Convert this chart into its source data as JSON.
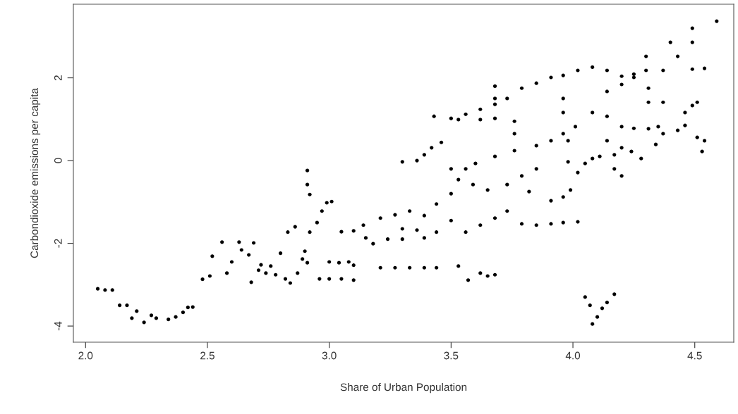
{
  "chart_data": {
    "type": "scatter",
    "xlabel": "Share of Urban Population",
    "ylabel": "Carbondioxide emissions per capita",
    "xlim": [
      1.95,
      4.66
    ],
    "ylim": [
      -4.39,
      3.78
    ],
    "xticks": [
      {
        "value": 2.0,
        "label": "2.0"
      },
      2.5,
      {
        "value": 3.0,
        "label": "3.0"
      },
      3.5,
      {
        "value": 4.0,
        "label": "4.0"
      },
      4.5
    ],
    "yticks": [
      -4,
      -2,
      0,
      2
    ],
    "marker": "circle",
    "grid": false,
    "series": [
      {
        "color": "#000000",
        "x": [
          2.05,
          2.08,
          2.11,
          2.14,
          2.17,
          2.19,
          2.21,
          2.24,
          2.27,
          2.29,
          2.34,
          2.37,
          2.4,
          2.42,
          2.44,
          2.48,
          2.51,
          2.52,
          2.56,
          2.58,
          2.6,
          2.63,
          2.64,
          2.67,
          2.68,
          2.69,
          2.71,
          2.72,
          2.74,
          2.76,
          2.78,
          2.8,
          2.82,
          2.84,
          2.87,
          2.89,
          2.9,
          2.91,
          2.91,
          2.92,
          2.92,
          2.95,
          2.97,
          2.99,
          3.01,
          2.91,
          2.96,
          3.0,
          3.05,
          3.1,
          2.86,
          2.83,
          3.0,
          3.04,
          3.08,
          3.1,
          3.05,
          3.1,
          3.14,
          3.15,
          3.21,
          3.27,
          3.3,
          3.33,
          3.36,
          3.39,
          3.44,
          3.5,
          3.21,
          3.27,
          3.33,
          3.39,
          3.44,
          3.53,
          3.57,
          3.62,
          3.65,
          3.68,
          3.18,
          3.24,
          3.3,
          3.39,
          3.44,
          3.5,
          3.3,
          3.36,
          3.39,
          3.42,
          3.46,
          3.43,
          3.5,
          3.56,
          3.62,
          3.68,
          3.73,
          3.79,
          3.85,
          3.91,
          3.96,
          3.68,
          3.68,
          3.53,
          3.62,
          3.68,
          3.76,
          3.76,
          3.53,
          3.56,
          3.6,
          3.68,
          3.76,
          3.85,
          3.91,
          3.96,
          4.01,
          3.5,
          3.59,
          3.65,
          3.73,
          3.82,
          3.91,
          3.96,
          3.99,
          3.62,
          3.68,
          3.73,
          3.79,
          3.85,
          3.91,
          3.96,
          4.02,
          3.56,
          3.79,
          3.85,
          3.96,
          3.96,
          3.98,
          3.98,
          4.05,
          4.07,
          4.08,
          4.1,
          4.12,
          4.14,
          4.17,
          4.02,
          4.05,
          4.08,
          4.11,
          4.17,
          4.08,
          4.14,
          4.2,
          4.25,
          4.31,
          4.37,
          4.43,
          4.46,
          4.14,
          4.2,
          4.25,
          4.31,
          4.37,
          4.4,
          4.43,
          4.49,
          4.54,
          4.49,
          4.49,
          4.59,
          4.02,
          4.08,
          4.14,
          4.2,
          4.25,
          4.31,
          4.37,
          4.49,
          4.51,
          4.46,
          4.51,
          4.54,
          4.53,
          4.24,
          4.28,
          4.34,
          4.35,
          4.14,
          4.2,
          4.17,
          4.2,
          4.3,
          4.3
        ],
        "values": [
          -3.1,
          -3.13,
          -3.13,
          -3.5,
          -3.5,
          -3.81,
          -3.64,
          -3.91,
          -3.74,
          -3.81,
          -3.84,
          -3.78,
          -3.67,
          -3.55,
          -3.54,
          -2.87,
          -2.79,
          -2.31,
          -1.97,
          -2.72,
          -2.45,
          -1.97,
          -2.16,
          -2.28,
          -2.94,
          -1.99,
          -2.65,
          -2.52,
          -2.72,
          -2.55,
          -2.76,
          -2.24,
          -2.86,
          -2.96,
          -2.72,
          -2.38,
          -2.19,
          -0.24,
          -0.58,
          -0.82,
          -1.73,
          -1.5,
          -1.22,
          -1.02,
          -0.99,
          -2.47,
          -2.86,
          -2.86,
          -2.86,
          -2.89,
          -1.6,
          -1.73,
          -2.45,
          -2.47,
          -2.45,
          -2.53,
          -1.72,
          -1.7,
          -1.56,
          -1.87,
          -1.39,
          -1.31,
          -1.65,
          -1.22,
          -1.68,
          -1.33,
          -1.05,
          -0.8,
          -2.59,
          -2.59,
          -2.59,
          -2.59,
          -2.59,
          -2.55,
          -2.89,
          -2.72,
          -2.79,
          -2.76,
          -2.01,
          -1.9,
          -1.9,
          -1.87,
          -1.73,
          -1.45,
          -0.03,
          0,
          0.14,
          0.31,
          0.44,
          1.07,
          1.02,
          1.12,
          1.24,
          1.36,
          1.5,
          1.75,
          1.87,
          2.01,
          2.06,
          1.8,
          1.5,
          0.99,
          0.99,
          1.02,
          0.95,
          0.65,
          -0.46,
          -0.2,
          -0.07,
          0.1,
          0.24,
          0.36,
          0.48,
          0.65,
          0.82,
          -0.2,
          -0.58,
          -0.71,
          -0.58,
          -0.75,
          -0.97,
          -0.88,
          -0.71,
          -1.56,
          -1.39,
          -1.22,
          -1.53,
          -1.56,
          -1.53,
          -1.5,
          -1.48,
          -1.73,
          -0.37,
          -0.2,
          1.5,
          1.16,
          0.48,
          -0.03,
          -3.3,
          -3.5,
          -3.95,
          -3.78,
          -3.57,
          -3.43,
          -3.23,
          -0.29,
          -0.07,
          0.05,
          0.1,
          0.14,
          1.16,
          1.07,
          0.82,
          0.78,
          0.77,
          0.65,
          0.73,
          0.85,
          1.67,
          1.84,
          2.01,
          1.75,
          2.18,
          2.86,
          2.52,
          2.21,
          2.23,
          3.2,
          2.86,
          3.37,
          2.18,
          2.26,
          2.18,
          2.04,
          2.09,
          1.41,
          1.41,
          1.33,
          1.41,
          1.16,
          0.56,
          0.48,
          0.22,
          0.22,
          0.05,
          0.39,
          0.82,
          0.48,
          0.31,
          -0.2,
          -0.37,
          2.52,
          2.18
        ]
      }
    ]
  }
}
